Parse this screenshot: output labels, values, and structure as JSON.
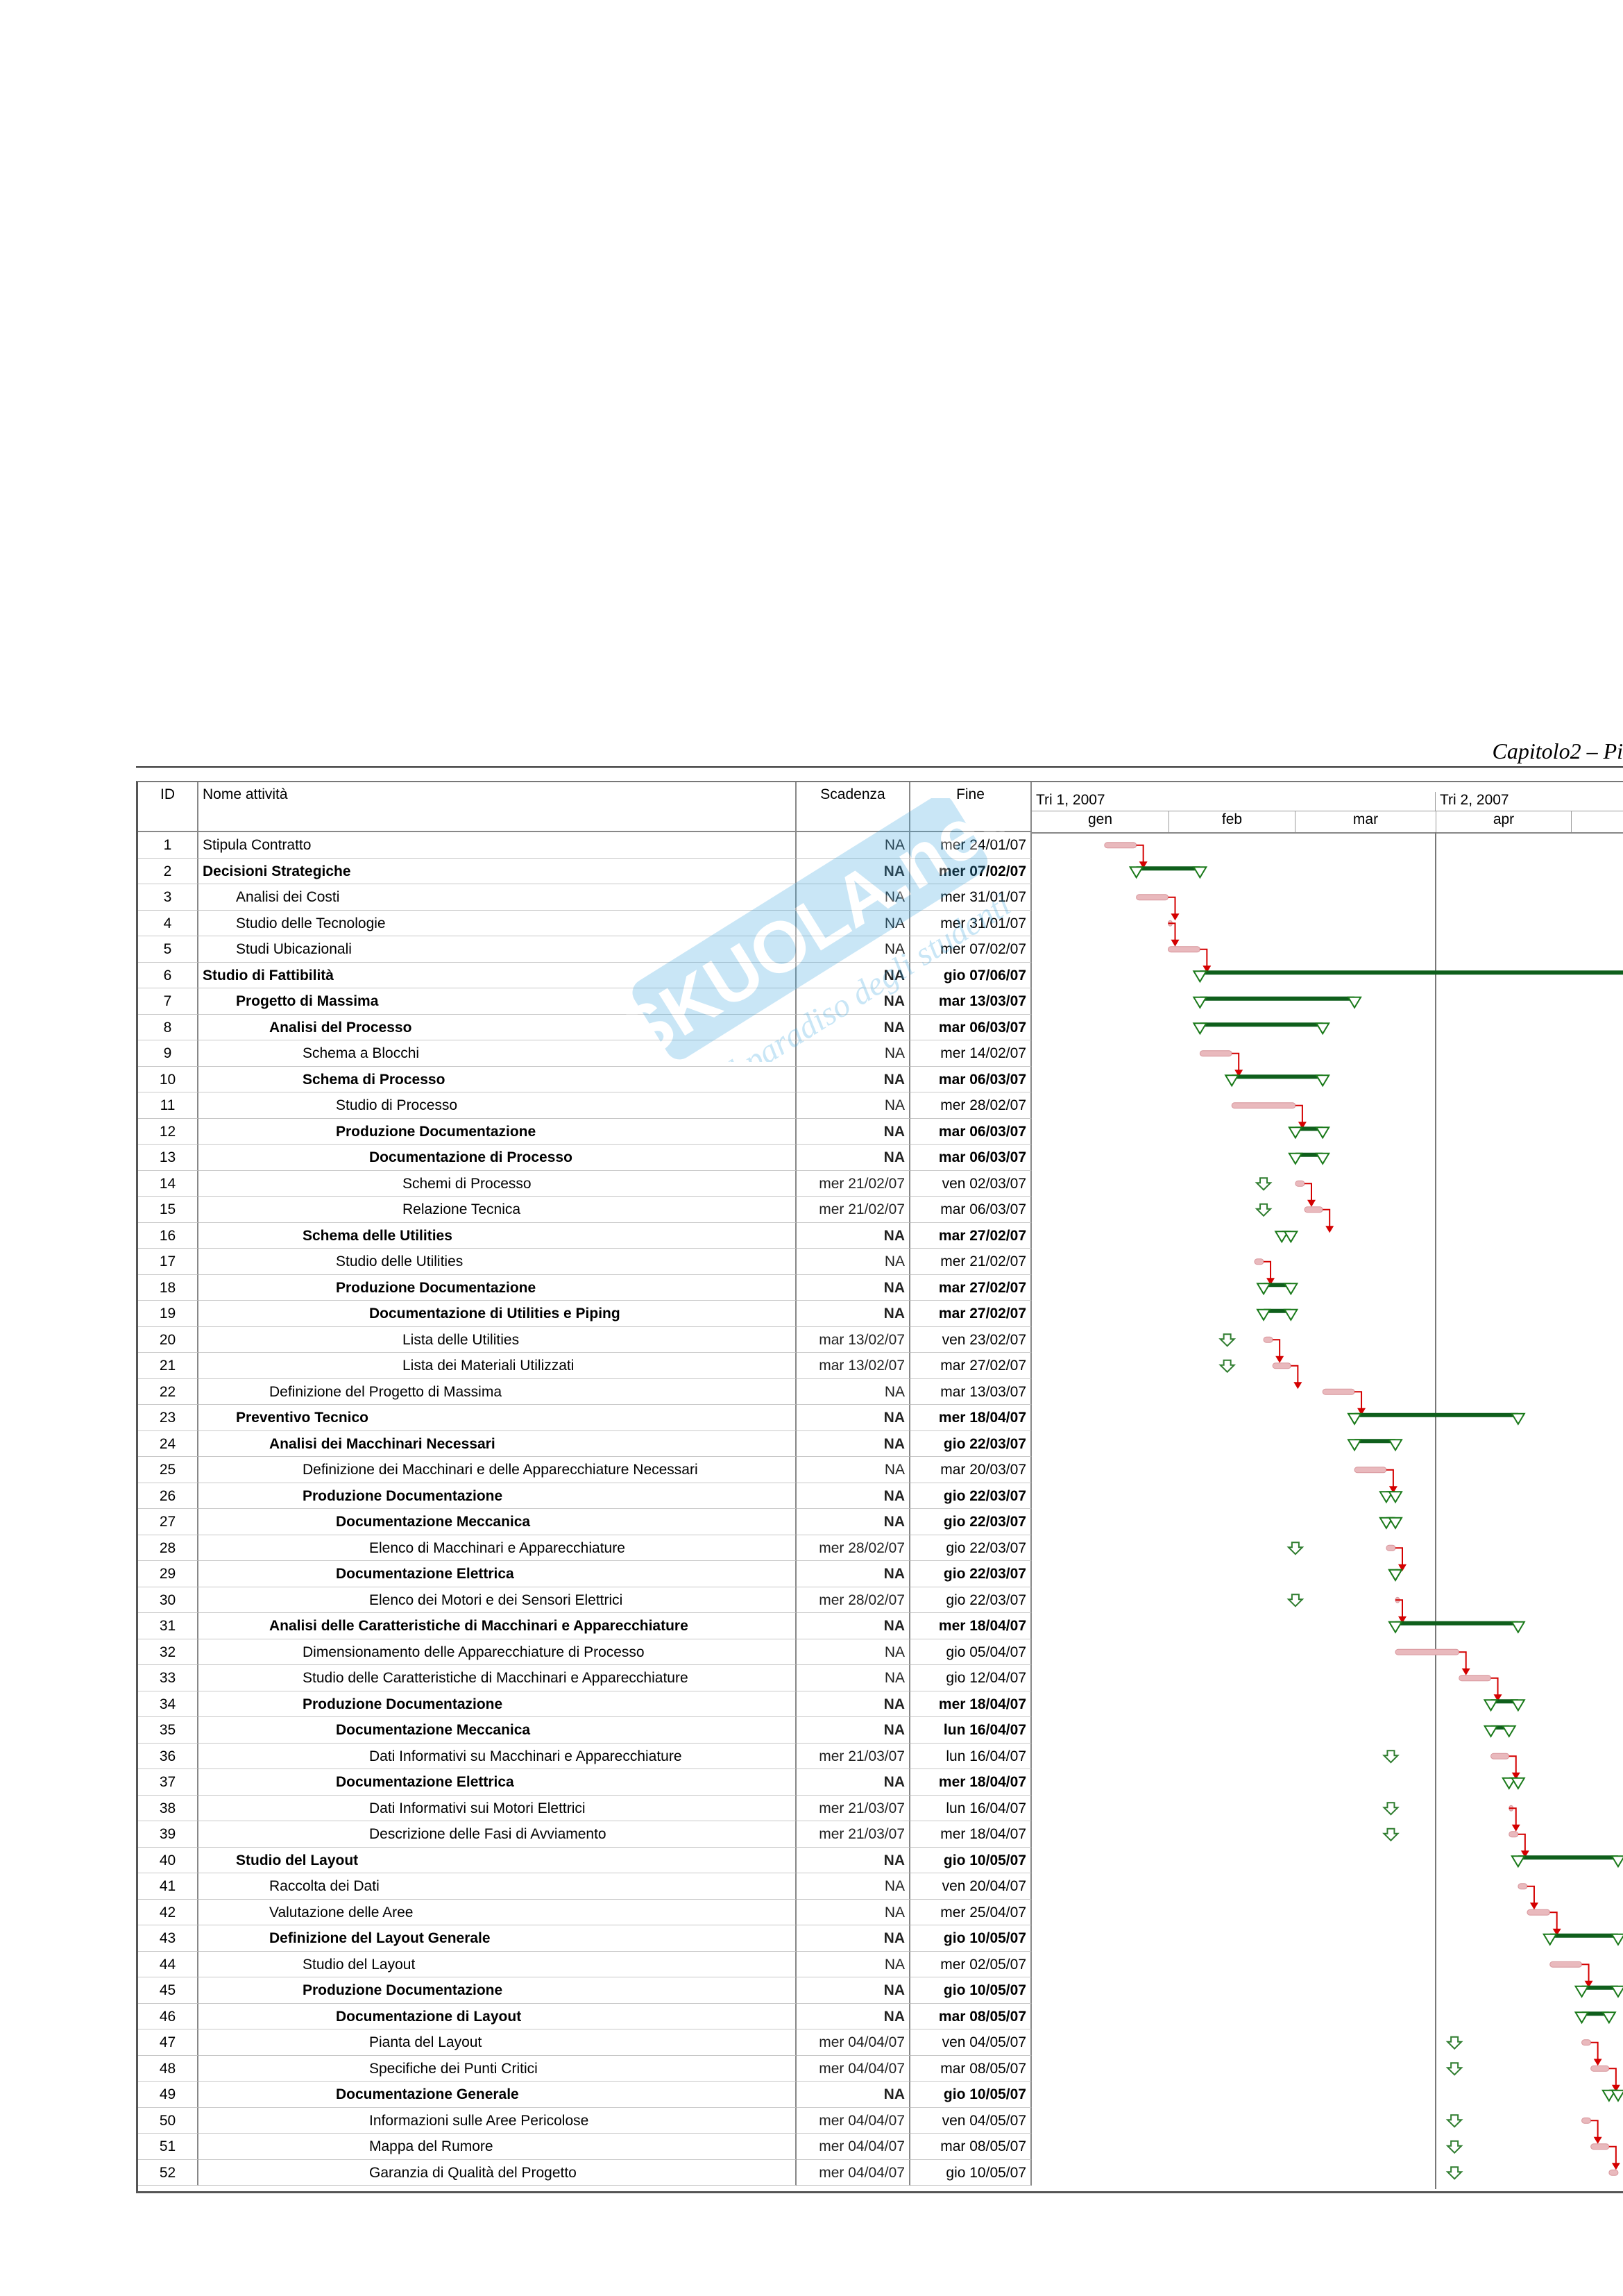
{
  "header": {
    "chapter": "Capitolo2 – Pi"
  },
  "columns": {
    "id": "ID",
    "name": "Nome attività",
    "deadline": "Scadenza",
    "end": "Fine"
  },
  "timescale": {
    "quarters": [
      {
        "label": "Tri 1, 2007"
      },
      {
        "label": "Tri 2, 2007"
      }
    ],
    "months": [
      "gen",
      "feb",
      "mar",
      "apr"
    ]
  },
  "watermark": {
    "brand": "SKUOLA.net",
    "tagline": "il paradiso degli studenti"
  },
  "colors": {
    "summary_bar": "#0f5f1c",
    "task_bar": "#e9b9bd",
    "link_red": "#d40000",
    "link_green": "#1a7a1a",
    "deadline_arrow": "#2f7d2f"
  },
  "tasks": [
    {
      "id": "1",
      "name": "Stipula Contratto",
      "level": 0,
      "bold": false,
      "deadline": "NA",
      "end": "mer 24/01/07"
    },
    {
      "id": "2",
      "name": "Decisioni Strategiche",
      "level": 0,
      "bold": true,
      "deadline": "NA",
      "end": "mer 07/02/07"
    },
    {
      "id": "3",
      "name": "Analisi dei Costi",
      "level": 1,
      "bold": false,
      "deadline": "NA",
      "end": "mer 31/01/07"
    },
    {
      "id": "4",
      "name": "Studio delle Tecnologie",
      "level": 1,
      "bold": false,
      "deadline": "NA",
      "end": "mer 31/01/07"
    },
    {
      "id": "5",
      "name": "Studi Ubicazionali",
      "level": 1,
      "bold": false,
      "deadline": "NA",
      "end": "mer 07/02/07"
    },
    {
      "id": "6",
      "name": "Studio di Fattibilità",
      "level": 0,
      "bold": true,
      "deadline": "NA",
      "end": "gio 07/06/07"
    },
    {
      "id": "7",
      "name": "Progetto di Massima",
      "level": 1,
      "bold": true,
      "deadline": "NA",
      "end": "mar 13/03/07"
    },
    {
      "id": "8",
      "name": "Analisi del Processo",
      "level": 2,
      "bold": true,
      "deadline": "NA",
      "end": "mar 06/03/07"
    },
    {
      "id": "9",
      "name": "Schema a Blocchi",
      "level": 3,
      "bold": false,
      "deadline": "NA",
      "end": "mer 14/02/07"
    },
    {
      "id": "10",
      "name": "Schema di Processo",
      "level": 3,
      "bold": true,
      "deadline": "NA",
      "end": "mar 06/03/07"
    },
    {
      "id": "11",
      "name": "Studio di Processo",
      "level": 4,
      "bold": false,
      "deadline": "NA",
      "end": "mer 28/02/07"
    },
    {
      "id": "12",
      "name": "Produzione Documentazione",
      "level": 4,
      "bold": true,
      "deadline": "NA",
      "end": "mar 06/03/07"
    },
    {
      "id": "13",
      "name": "Documentazione di Processo",
      "level": 5,
      "bold": true,
      "deadline": "NA",
      "end": "mar 06/03/07"
    },
    {
      "id": "14",
      "name": "Schemi di Processo",
      "level": 6,
      "bold": false,
      "deadline": "mer 21/02/07",
      "end": "ven 02/03/07"
    },
    {
      "id": "15",
      "name": "Relazione Tecnica",
      "level": 6,
      "bold": false,
      "deadline": "mer 21/02/07",
      "end": "mar 06/03/07"
    },
    {
      "id": "16",
      "name": "Schema delle Utilities",
      "level": 3,
      "bold": true,
      "deadline": "NA",
      "end": "mar 27/02/07"
    },
    {
      "id": "17",
      "name": "Studio delle Utilities",
      "level": 4,
      "bold": false,
      "deadline": "NA",
      "end": "mer 21/02/07"
    },
    {
      "id": "18",
      "name": "Produzione Documentazione",
      "level": 4,
      "bold": true,
      "deadline": "NA",
      "end": "mar 27/02/07"
    },
    {
      "id": "19",
      "name": "Documentazione di Utilities e Piping",
      "level": 5,
      "bold": true,
      "deadline": "NA",
      "end": "mar 27/02/07"
    },
    {
      "id": "20",
      "name": "Lista delle Utilities",
      "level": 6,
      "bold": false,
      "deadline": "mar 13/02/07",
      "end": "ven 23/02/07"
    },
    {
      "id": "21",
      "name": "Lista dei Materiali Utilizzati",
      "level": 6,
      "bold": false,
      "deadline": "mar 13/02/07",
      "end": "mar 27/02/07"
    },
    {
      "id": "22",
      "name": "Definizione del Progetto di Massima",
      "level": 2,
      "bold": false,
      "deadline": "NA",
      "end": "mar 13/03/07"
    },
    {
      "id": "23",
      "name": "Preventivo Tecnico",
      "level": 1,
      "bold": true,
      "deadline": "NA",
      "end": "mer 18/04/07"
    },
    {
      "id": "24",
      "name": "Analisi dei Macchinari Necessari",
      "level": 2,
      "bold": true,
      "deadline": "NA",
      "end": "gio 22/03/07"
    },
    {
      "id": "25",
      "name": "Definizione dei Macchinari e delle Apparecchiature Necessari",
      "level": 3,
      "bold": false,
      "deadline": "NA",
      "end": "mar 20/03/07"
    },
    {
      "id": "26",
      "name": "Produzione Documentazione",
      "level": 3,
      "bold": true,
      "deadline": "NA",
      "end": "gio 22/03/07"
    },
    {
      "id": "27",
      "name": "Documentazione Meccanica",
      "level": 4,
      "bold": true,
      "deadline": "NA",
      "end": "gio 22/03/07"
    },
    {
      "id": "28",
      "name": "Elenco di Macchinari e Apparecchiature",
      "level": 5,
      "bold": false,
      "deadline": "mer 28/02/07",
      "end": "gio 22/03/07"
    },
    {
      "id": "29",
      "name": "Documentazione Elettrica",
      "level": 4,
      "bold": true,
      "deadline": "NA",
      "end": "gio 22/03/07"
    },
    {
      "id": "30",
      "name": "Elenco dei Motori e dei Sensori Elettrici",
      "level": 5,
      "bold": false,
      "deadline": "mer 28/02/07",
      "end": "gio 22/03/07"
    },
    {
      "id": "31",
      "name": "Analisi delle Caratteristiche di Macchinari e Apparecchiature",
      "level": 2,
      "bold": true,
      "deadline": "NA",
      "end": "mer 18/04/07"
    },
    {
      "id": "32",
      "name": "Dimensionamento delle Apparecchiature di Processo",
      "level": 3,
      "bold": false,
      "deadline": "NA",
      "end": "gio 05/04/07"
    },
    {
      "id": "33",
      "name": "Studio delle Caratteristiche di Macchinari e Apparecchiature",
      "level": 3,
      "bold": false,
      "deadline": "NA",
      "end": "gio 12/04/07"
    },
    {
      "id": "34",
      "name": "Produzione Documentazione",
      "level": 3,
      "bold": true,
      "deadline": "NA",
      "end": "mer 18/04/07"
    },
    {
      "id": "35",
      "name": "Documentazione Meccanica",
      "level": 4,
      "bold": true,
      "deadline": "NA",
      "end": "lun 16/04/07"
    },
    {
      "id": "36",
      "name": "Dati Informativi su Macchinari e Apparecchiature",
      "level": 5,
      "bold": false,
      "deadline": "mer 21/03/07",
      "end": "lun 16/04/07"
    },
    {
      "id": "37",
      "name": "Documentazione Elettrica",
      "level": 4,
      "bold": true,
      "deadline": "NA",
      "end": "mer 18/04/07"
    },
    {
      "id": "38",
      "name": "Dati Informativi sui Motori Elettrici",
      "level": 5,
      "bold": false,
      "deadline": "mer 21/03/07",
      "end": "lun 16/04/07"
    },
    {
      "id": "39",
      "name": "Descrizione delle Fasi di Avviamento",
      "level": 5,
      "bold": false,
      "deadline": "mer 21/03/07",
      "end": "mer 18/04/07"
    },
    {
      "id": "40",
      "name": "Studio del Layout",
      "level": 1,
      "bold": true,
      "deadline": "NA",
      "end": "gio 10/05/07"
    },
    {
      "id": "41",
      "name": "Raccolta dei Dati",
      "level": 2,
      "bold": false,
      "deadline": "NA",
      "end": "ven 20/04/07"
    },
    {
      "id": "42",
      "name": "Valutazione delle Aree",
      "level": 2,
      "bold": false,
      "deadline": "NA",
      "end": "mer 25/04/07"
    },
    {
      "id": "43",
      "name": "Definizione del Layout Generale",
      "level": 2,
      "bold": true,
      "deadline": "NA",
      "end": "gio 10/05/07"
    },
    {
      "id": "44",
      "name": "Studio del Layout",
      "level": 3,
      "bold": false,
      "deadline": "NA",
      "end": "mer 02/05/07"
    },
    {
      "id": "45",
      "name": "Produzione Documentazione",
      "level": 3,
      "bold": true,
      "deadline": "NA",
      "end": "gio 10/05/07"
    },
    {
      "id": "46",
      "name": "Documentazione di Layout",
      "level": 4,
      "bold": true,
      "deadline": "NA",
      "end": "mar 08/05/07"
    },
    {
      "id": "47",
      "name": "Pianta del Layout",
      "level": 5,
      "bold": false,
      "deadline": "mer 04/04/07",
      "end": "ven 04/05/07"
    },
    {
      "id": "48",
      "name": "Specifiche dei Punti Critici",
      "level": 5,
      "bold": false,
      "deadline": "mer 04/04/07",
      "end": "mar 08/05/07"
    },
    {
      "id": "49",
      "name": "Documentazione Generale",
      "level": 4,
      "bold": true,
      "deadline": "NA",
      "end": "gio 10/05/07"
    },
    {
      "id": "50",
      "name": "Informazioni sulle Aree Pericolose",
      "level": 5,
      "bold": false,
      "deadline": "mer 04/04/07",
      "end": "ven 04/05/07"
    },
    {
      "id": "51",
      "name": "Mappa del Rumore",
      "level": 5,
      "bold": false,
      "deadline": "mer 04/04/07",
      "end": "mar 08/05/07"
    },
    {
      "id": "52",
      "name": "Garanzia di Qualità del Progetto",
      "level": 5,
      "bold": false,
      "deadline": "mer 04/04/07",
      "end": "gio 10/05/07"
    }
  ]
}
